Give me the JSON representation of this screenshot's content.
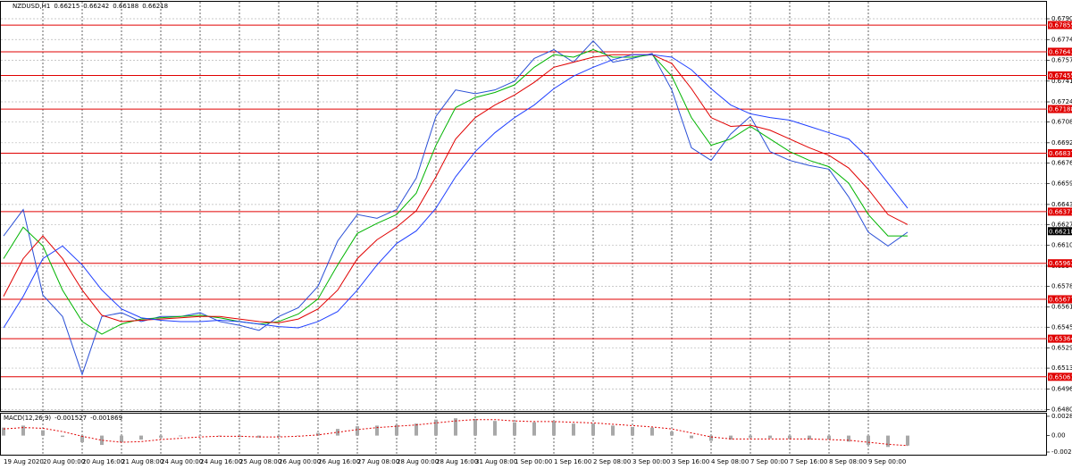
{
  "chart_data": {
    "type": "line",
    "title": "NZDUSD,H1",
    "ohlc": [
      0.66215,
      0.66242,
      0.66188,
      0.66218
    ],
    "categories": [
      "19 Aug 2020",
      null,
      "20 Aug 00:00",
      null,
      "20 Aug 16:00",
      null,
      "21 Aug 08:00",
      null,
      "24 Aug 00:00",
      null,
      "24 Aug 16:00",
      null,
      "25 Aug 08:00",
      null,
      "26 Aug 00:00",
      null,
      "26 Aug 16:00",
      null,
      "27 Aug 08:00",
      null,
      "28 Aug 00:00",
      null,
      "28 Aug 16:00",
      null,
      "31 Aug 08:00",
      null,
      "1 Sep 00:00",
      null,
      "1 Sep 16:00",
      null,
      "2 Sep 08:00",
      null,
      "3 Sep 00:00",
      null,
      "3 Sep 16:00",
      null,
      "4 Sep 08:00",
      null,
      "7 Sep 00:00",
      null,
      "7 Sep 16:00",
      null,
      "8 Sep 08:00",
      null,
      "9 Sep 00:00",
      null,
      null
    ],
    "series": [
      {
        "color": "#2a4fd6",
        "values": [
          0.6618,
          0.6639,
          0.6571,
          0.6554,
          0.6508,
          0.6554,
          0.6557,
          0.655,
          0.6554,
          0.6554,
          0.6557,
          0.655,
          0.6547,
          0.6543,
          0.6554,
          0.6561,
          0.6578,
          0.6614,
          0.6635,
          0.6632,
          0.6639,
          0.6664,
          0.6713,
          0.6734,
          0.6731,
          0.6734,
          0.6741,
          0.6759,
          0.6766,
          0.6756,
          0.6773,
          0.6756,
          0.6759,
          0.6763,
          0.6734,
          0.6688,
          0.6678,
          0.6699,
          0.6713,
          0.6685,
          0.6678,
          0.6674,
          0.6671,
          0.6649,
          0.6621,
          0.661,
          0.6621
        ]
      },
      {
        "color": "#00b400",
        "values": [
          0.66,
          0.6625,
          0.661,
          0.6575,
          0.655,
          0.654,
          0.6548,
          0.6552,
          0.6553,
          0.6554,
          0.6555,
          0.6553,
          0.655,
          0.6548,
          0.655,
          0.6556,
          0.6568,
          0.6595,
          0.662,
          0.6628,
          0.6635,
          0.6652,
          0.669,
          0.672,
          0.6728,
          0.6732,
          0.6738,
          0.6752,
          0.6762,
          0.676,
          0.6766,
          0.676,
          0.676,
          0.6762,
          0.6745,
          0.6712,
          0.669,
          0.6695,
          0.6705,
          0.6695,
          0.6685,
          0.6678,
          0.6673,
          0.666,
          0.6635,
          0.6618,
          0.6618
        ]
      },
      {
        "color": "#e00000",
        "values": [
          0.657,
          0.66,
          0.6618,
          0.66,
          0.6575,
          0.6555,
          0.655,
          0.6551,
          0.6552,
          0.6553,
          0.6554,
          0.6554,
          0.6552,
          0.655,
          0.6549,
          0.6552,
          0.656,
          0.6575,
          0.66,
          0.6615,
          0.6625,
          0.6638,
          0.6665,
          0.6695,
          0.6712,
          0.6722,
          0.673,
          0.674,
          0.6752,
          0.6756,
          0.676,
          0.6762,
          0.6762,
          0.6762,
          0.6755,
          0.6735,
          0.6712,
          0.6705,
          0.6706,
          0.6702,
          0.6695,
          0.6688,
          0.6682,
          0.6672,
          0.6655,
          0.6635,
          0.6627
        ]
      },
      {
        "color": "#1f3fff",
        "values": [
          0.6545,
          0.657,
          0.66,
          0.661,
          0.6595,
          0.6575,
          0.656,
          0.6553,
          0.6551,
          0.655,
          0.655,
          0.6551,
          0.655,
          0.6548,
          0.6546,
          0.6545,
          0.655,
          0.6558,
          0.6575,
          0.6595,
          0.6612,
          0.6622,
          0.664,
          0.6665,
          0.6685,
          0.67,
          0.6712,
          0.6722,
          0.6735,
          0.6745,
          0.6752,
          0.6758,
          0.6762,
          0.6762,
          0.676,
          0.675,
          0.6735,
          0.6722,
          0.6715,
          0.6712,
          0.671,
          0.6705,
          0.67,
          0.6695,
          0.668,
          0.666,
          0.664
        ]
      }
    ],
    "ylim": [
      0.6479,
      0.6804
    ],
    "yticks": [
      0.67905,
      {
        "value": 0.6774,
        "label": "0.67740"
      },
      0.67575,
      {
        "value": 0.6741,
        "label": "0.67410"
      },
      0.67245,
      0.67085,
      {
        "value": 0.6692,
        "label": "0.66920"
      },
      {
        "value": 0.6676,
        "label": "0.66760"
      },
      0.66595,
      {
        "value": 0.6643,
        "label": "0.66430"
      },
      {
        "value": 0.6627,
        "label": "0.66270"
      },
      0.66105,
      {
        "value": 0.6594,
        "label": "0.65940"
      },
      {
        "value": 0.6578,
        "label": "0.65780"
      },
      0.65615,
      0.65455,
      {
        "value": 0.6529,
        "label": "0.65290"
      },
      {
        "value": 0.6513,
        "label": "0.65130"
      },
      0.64965,
      {
        "value": 0.648,
        "label": "0.64800"
      }
    ],
    "grid": true,
    "levels": [
      0.67855,
      0.67643,
      0.67455,
      0.67188,
      0.66837,
      0.66373,
      0.65963,
      0.65677,
      0.65364,
      0.65061
    ],
    "level_color": "#e00000",
    "current_price": 0.66218,
    "macd": {
      "title": "MACD(12,26,9)",
      "readout": [
        -0.001527,
        -0.001869
      ],
      "ylim": [
        -0.003,
        0.00343
      ],
      "yticks": [
        0.002898,
        {
          "value": 0,
          "label": "0.00"
        },
        -0.002466
      ],
      "histogram": {
        "color": "#a8a8a8",
        "values": [
          0.0012,
          0.0015,
          0.0008,
          -0.0002,
          -0.001,
          -0.0014,
          -0.001,
          -0.0006,
          -0.0003,
          -0.0001,
          0,
          -0.0001,
          -0.0002,
          -0.0003,
          -0.0002,
          0,
          0.0004,
          0.001,
          0.0014,
          0.0015,
          0.0016,
          0.0018,
          0.0024,
          0.0026,
          0.0025,
          0.0022,
          0.002,
          0.002,
          0.0021,
          0.0018,
          0.0018,
          0.0015,
          0.0013,
          0.0012,
          0.0006,
          -0.0004,
          -0.0008,
          -0.0006,
          -0.0003,
          -0.0004,
          -0.0005,
          -0.0006,
          -0.0006,
          -0.0009,
          -0.0014,
          -0.0017,
          -0.0015
        ]
      },
      "signal": {
        "color": "#e00000",
        "values": [
          0.001,
          0.0012,
          0.0011,
          0.0006,
          -0.0001,
          -0.0007,
          -0.001,
          -0.0009,
          -0.0006,
          -0.0004,
          -0.0002,
          -0.0001,
          -0.0001,
          -0.0002,
          -0.0002,
          -0.0001,
          0.0001,
          0.0005,
          0.0009,
          0.0012,
          0.0014,
          0.0016,
          0.0019,
          0.0022,
          0.0024,
          0.0024,
          0.0022,
          0.0021,
          0.0021,
          0.002,
          0.0019,
          0.0017,
          0.0015,
          0.0013,
          0.001,
          0.0004,
          -0.0002,
          -0.0005,
          -0.0005,
          -0.0005,
          -0.0005,
          -0.0005,
          -0.0006,
          -0.0007,
          -0.001,
          -0.0013,
          -0.0015
        ]
      }
    }
  }
}
